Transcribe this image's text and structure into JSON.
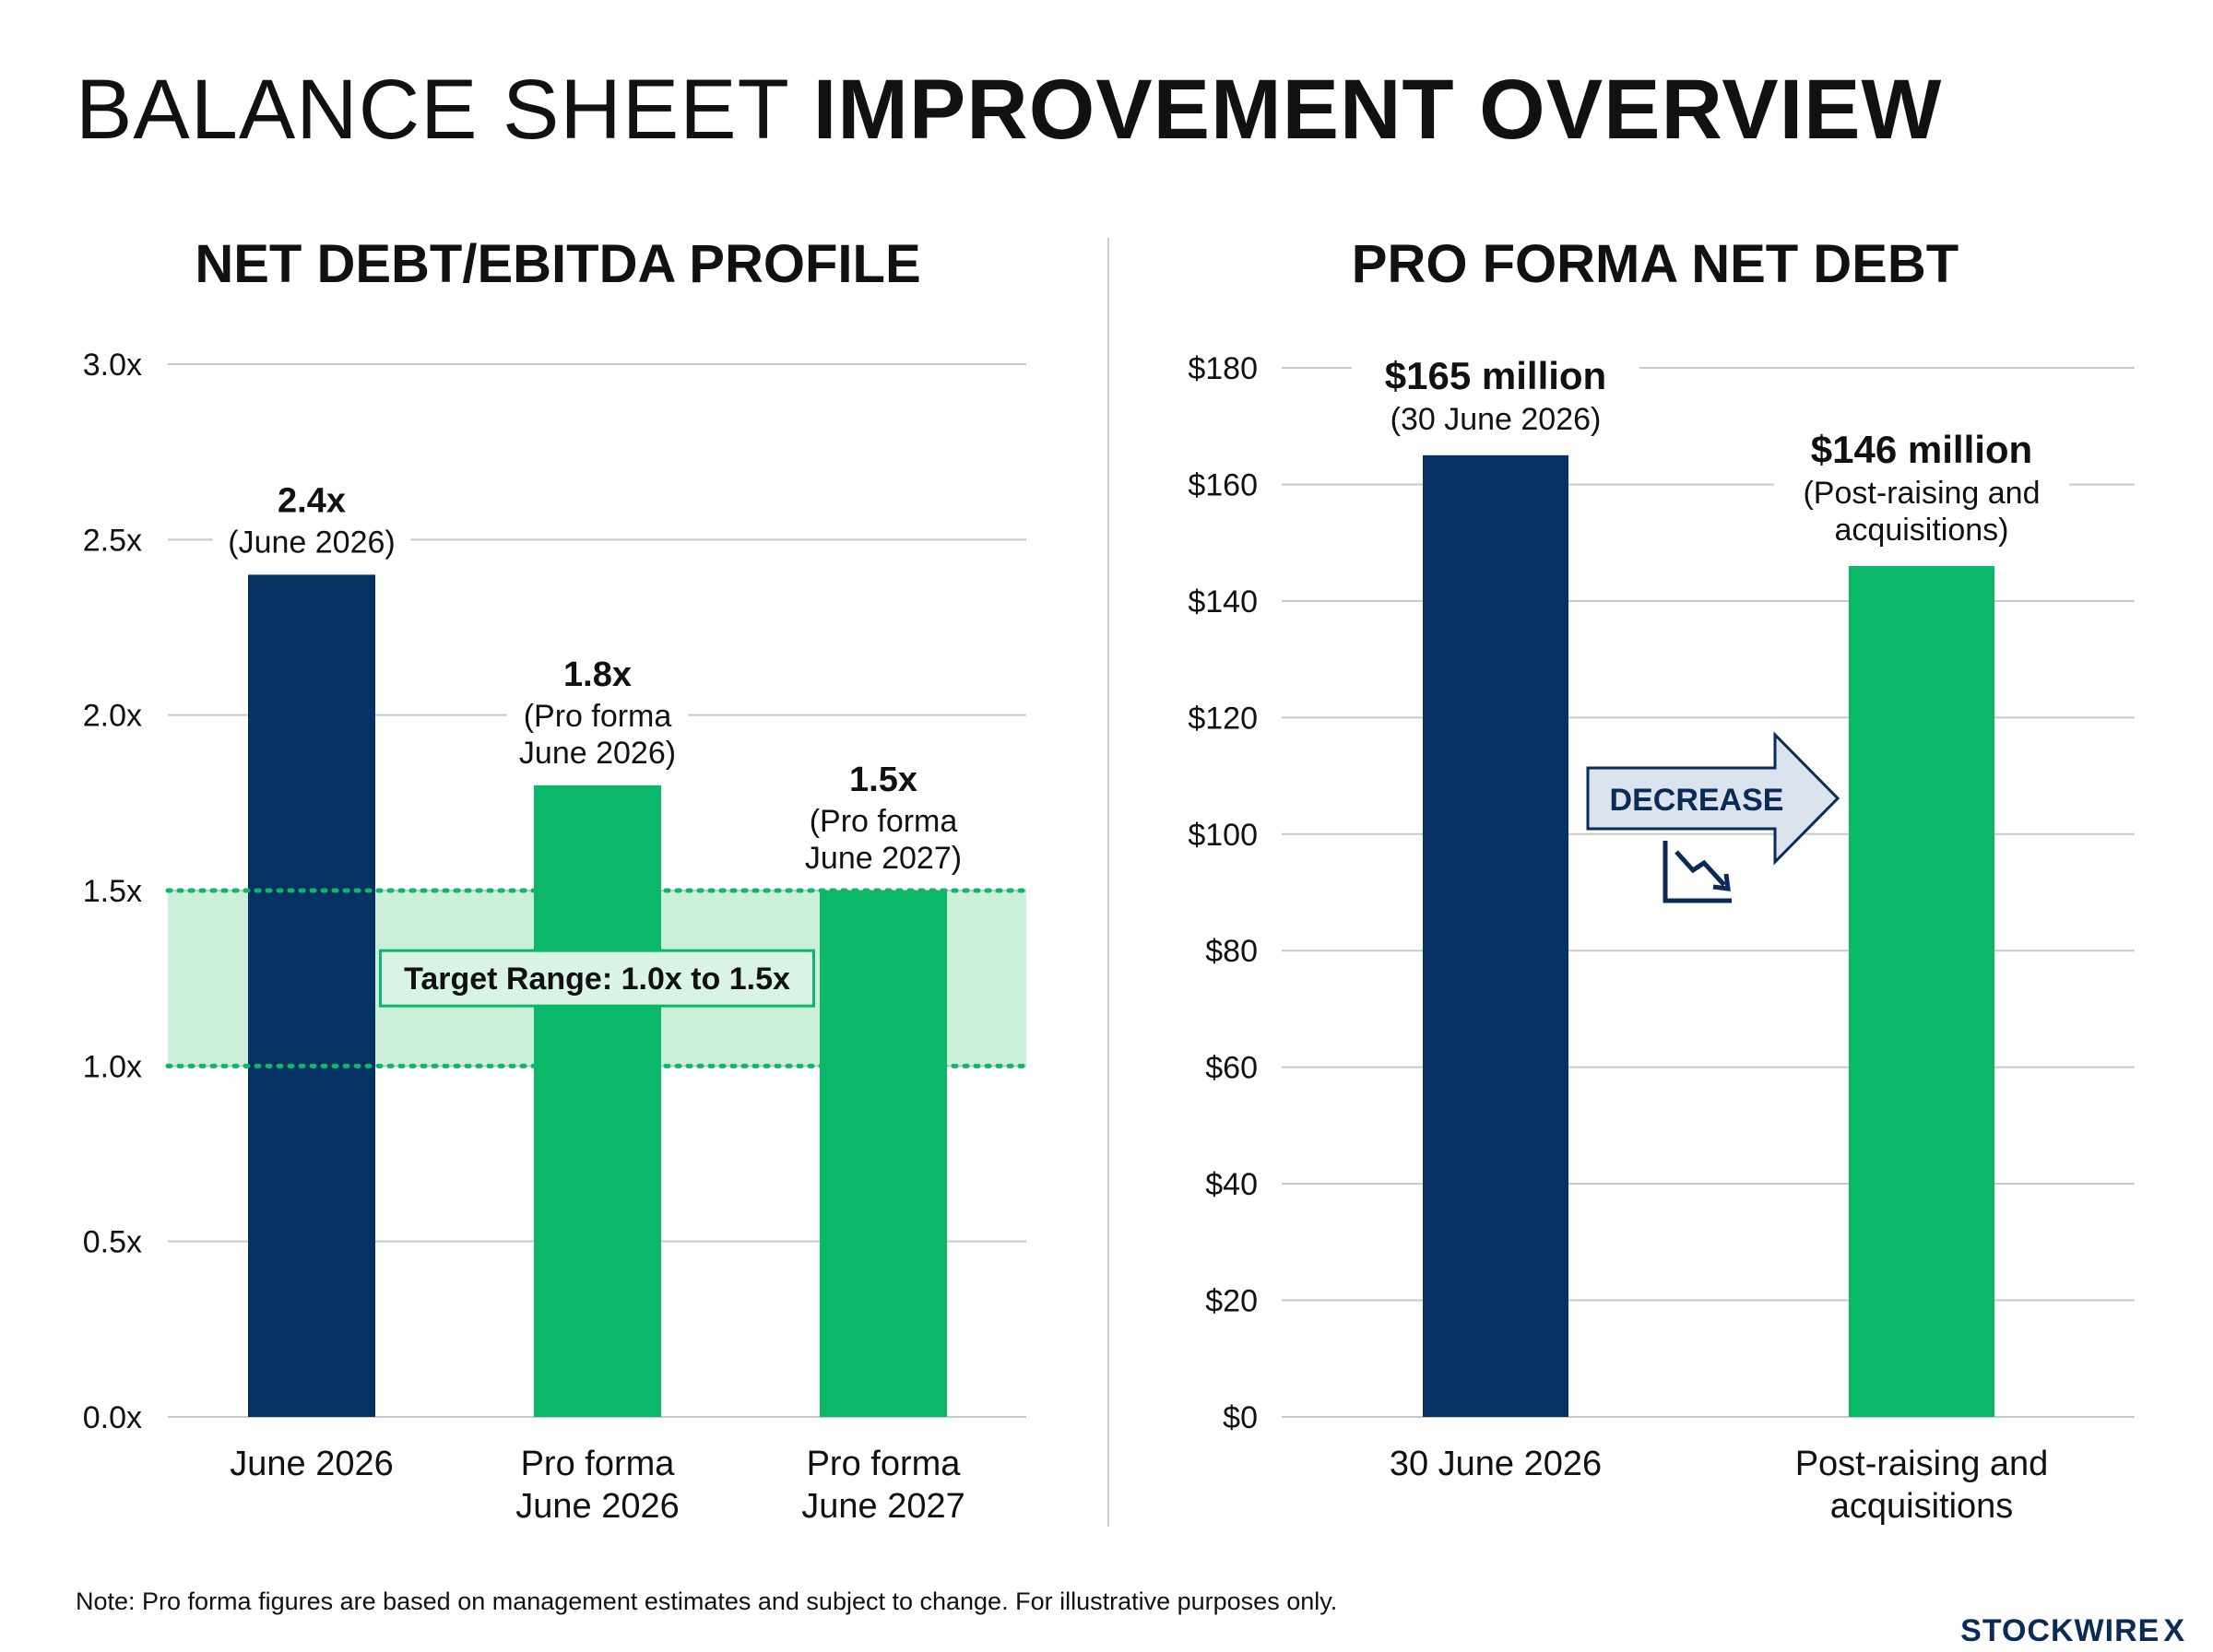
{
  "title": {
    "light": "BALANCE SHEET",
    "bold": "IMPROVEMENT OVERVIEW"
  },
  "colors": {
    "navy": "#063263",
    "green": "#0bb86a",
    "target_band": "#c9eed8",
    "grid": "#c8c8c8"
  },
  "chart_data": [
    {
      "type": "bar",
      "title": "NET DEBT/EBITDA PROFILE",
      "categories": [
        [
          "June 2026"
        ],
        [
          "Pro forma",
          "June 2026"
        ],
        [
          "Pro forma",
          "June 2027"
        ]
      ],
      "values": [
        2.4,
        1.8,
        1.5
      ],
      "bar_colors": [
        "navy",
        "green",
        "green"
      ],
      "data_labels": [
        {
          "value": "2.4x",
          "sub": [
            "(June 2026)"
          ]
        },
        {
          "value": "1.8x",
          "sub": [
            "(Pro forma",
            "June 2026)"
          ]
        },
        {
          "value": "1.5x",
          "sub": [
            "(Pro forma",
            "June 2027)"
          ]
        }
      ],
      "yticks": [
        "0.0x",
        "0.5x",
        "1.0x",
        "1.5x",
        "2.0x",
        "2.5x",
        "3.0x"
      ],
      "ytick_values": [
        0,
        0.5,
        1.0,
        1.5,
        2.0,
        2.5,
        3.0
      ],
      "ylim": [
        0,
        3
      ],
      "grid": true,
      "target_range": {
        "label": "Target Range: 1.0x to 1.5x",
        "low": 1.0,
        "high": 1.5
      }
    },
    {
      "type": "bar",
      "title": "PRO FORMA NET DEBT",
      "categories": [
        [
          "30 June 2026"
        ],
        [
          "Post-raising and",
          "acquisitions"
        ]
      ],
      "values": [
        165,
        146
      ],
      "bar_colors": [
        "navy",
        "green"
      ],
      "data_labels": [
        {
          "value": "$165 million",
          "sub": [
            "(30 June 2026)"
          ]
        },
        {
          "value": "$146 million",
          "sub": [
            "(Post-raising and",
            "acquisitions)"
          ]
        }
      ],
      "yticks": [
        "$0",
        "$20",
        "$40",
        "$60",
        "$80",
        "$100",
        "$120",
        "$140",
        "$160",
        "$180"
      ],
      "ytick_values": [
        0,
        20,
        40,
        60,
        80,
        100,
        120,
        140,
        160,
        180
      ],
      "ylim": [
        0,
        180
      ],
      "grid": true,
      "annotation": {
        "label": "DECREASE",
        "icon": "trend-down-icon"
      }
    }
  ],
  "note": "Note: Pro forma figures are based on management estimates and subject to change. For illustrative purposes only.",
  "brand": {
    "name": "STOCKWIRE",
    "mark": "X"
  }
}
